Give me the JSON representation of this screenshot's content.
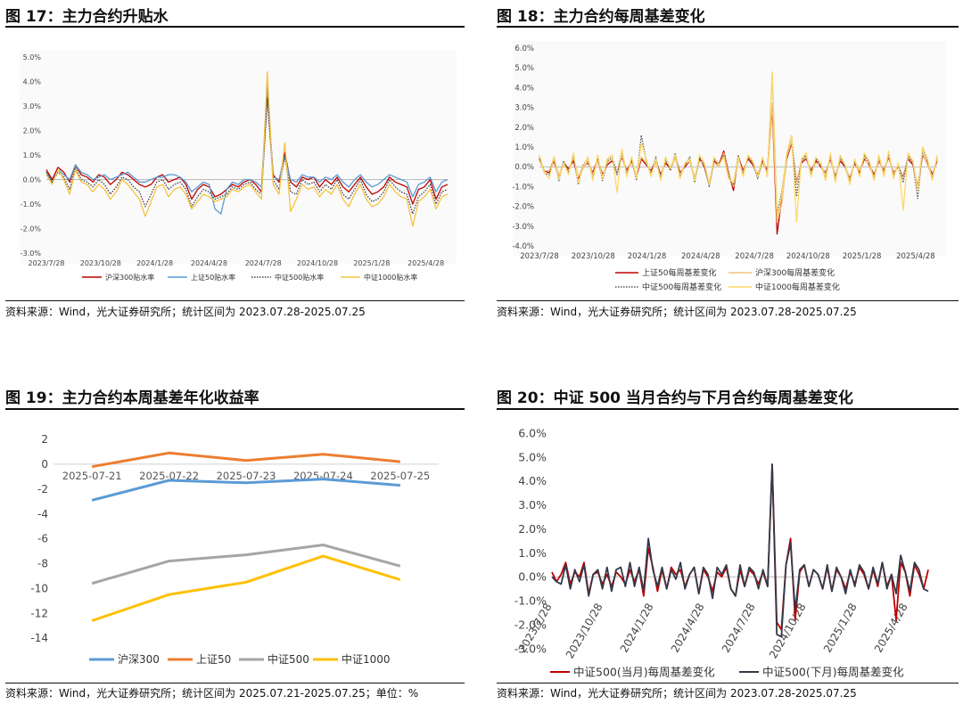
{
  "panels": [
    {
      "title": "图 17：主力合约升贴水",
      "source": "资料来源：Wind，光大证券研究所；统计区间为 2023.07.28-2025.07.25"
    },
    {
      "title": "图 18：主力合约每周基差变化",
      "source": "资料来源：Wind，光大证券研究所；统计区间为 2023.07.28-2025.07.25"
    },
    {
      "title": "图 19：主力合约本周基差年化收益率",
      "source": "资料来源：Wind，光大证券研究所；统计区间为 2025.07.21-2025.07.25；单位：%"
    },
    {
      "title": "图 20：中证 500 当月合约与下月合约每周基差变化",
      "source": "资料来源：Wind，光大证券研究所；统计区间为 2023.07.28-2025.07.25"
    }
  ],
  "chart_data": [
    {
      "type": "line",
      "title": "",
      "ylim": [
        -3.0,
        5.0
      ],
      "yticks": [
        "-3.0%",
        "-2.0%",
        "-1.0%",
        "0.0%",
        "1.0%",
        "2.0%",
        "3.0%",
        "4.0%",
        "5.0%"
      ],
      "xticks": [
        "2023/7/28",
        "2023/10/28",
        "2024/1/28",
        "2024/4/28",
        "2024/7/28",
        "2024/10/28",
        "2025/1/28",
        "2025/4/28"
      ],
      "legend_position": "bottom",
      "series": [
        {
          "name": "沪深300贴水率",
          "color": "#c00000",
          "style": "solid",
          "values": [
            0.4,
            0.0,
            0.5,
            0.3,
            -0.1,
            0.6,
            0.2,
            0.1,
            -0.1,
            0.2,
            0.1,
            -0.2,
            0.0,
            0.3,
            0.2,
            0.0,
            -0.2,
            -0.3,
            -0.2,
            0.1,
            0.2,
            -0.1,
            0.0,
            0.1,
            -0.2,
            -0.8,
            -0.4,
            -0.2,
            -0.3,
            -0.7,
            -0.6,
            -0.4,
            -0.2,
            -0.3,
            -0.1,
            0.0,
            -0.2,
            -0.5,
            3.6,
            0.2,
            -0.1,
            1.1,
            -0.1,
            -0.3,
            0.1,
            0.0,
            0.1,
            -0.3,
            0.0,
            -0.2,
            0.1,
            -0.3,
            -0.5,
            -0.2,
            0.1,
            -0.3,
            -0.6,
            -0.5,
            -0.3,
            0.1,
            -0.1,
            -0.2,
            -0.3,
            -1.0,
            -0.4,
            -0.3,
            0.0,
            -0.8,
            -0.3,
            -0.2
          ]
        },
        {
          "name": "上证50贴水率",
          "color": "#5b9bd5",
          "style": "solid",
          "values": [
            0.3,
            -0.1,
            0.4,
            0.2,
            0.0,
            0.6,
            0.3,
            0.2,
            0.0,
            0.1,
            0.2,
            0.0,
            0.1,
            0.2,
            0.3,
            0.1,
            -0.1,
            -0.1,
            0.0,
            0.1,
            0.1,
            0.2,
            0.2,
            0.1,
            -0.1,
            -0.5,
            -0.3,
            -0.1,
            -0.2,
            -1.2,
            -1.4,
            -0.4,
            -0.1,
            -0.2,
            0.0,
            0.0,
            -0.1,
            -0.3,
            3.8,
            0.1,
            0.0,
            0.9,
            0.0,
            -0.1,
            0.2,
            0.1,
            0.1,
            -0.1,
            0.1,
            0.0,
            0.2,
            -0.1,
            -0.3,
            0.0,
            0.2,
            -0.1,
            -0.3,
            -0.2,
            0.0,
            0.2,
            0.1,
            0.0,
            -0.1,
            -0.7,
            -0.2,
            -0.1,
            0.1,
            -0.5,
            -0.1,
            0.0
          ]
        },
        {
          "name": "中证500贴水率",
          "color": "#404040",
          "style": "dotted",
          "values": [
            0.3,
            -0.1,
            0.3,
            0.1,
            -0.4,
            0.5,
            0.0,
            -0.1,
            -0.3,
            0.0,
            -0.2,
            -0.6,
            -0.3,
            0.1,
            0.0,
            -0.3,
            -0.5,
            -1.1,
            -0.6,
            -0.1,
            0.0,
            -0.4,
            -0.2,
            -0.1,
            -0.4,
            -1.1,
            -0.7,
            -0.4,
            -0.5,
            -0.8,
            -0.7,
            -0.6,
            -0.3,
            -0.4,
            -0.2,
            -0.1,
            -0.4,
            -0.6,
            3.3,
            0.0,
            -0.4,
            1.0,
            -0.5,
            -0.6,
            0.0,
            -0.2,
            -0.1,
            -0.5,
            -0.2,
            -0.4,
            0.0,
            -0.6,
            -0.8,
            -0.4,
            0.0,
            -0.6,
            -0.9,
            -0.8,
            -0.5,
            0.0,
            -0.3,
            -0.5,
            -0.6,
            -1.4,
            -0.7,
            -0.5,
            -0.2,
            -1.0,
            -0.5,
            -0.4
          ]
        },
        {
          "name": "中证1000贴水率",
          "color": "#f5c342",
          "style": "solid",
          "values": [
            0.2,
            -0.2,
            0.4,
            0.0,
            -0.6,
            0.4,
            -0.1,
            -0.2,
            -0.5,
            -0.2,
            -0.4,
            -0.8,
            -0.5,
            0.0,
            -0.2,
            -0.5,
            -0.8,
            -1.5,
            -0.9,
            -0.3,
            -0.2,
            -0.7,
            -0.4,
            -0.3,
            -0.6,
            -1.2,
            -0.9,
            -0.6,
            -0.7,
            -0.9,
            -0.8,
            -0.7,
            -0.4,
            -0.5,
            -0.3,
            -0.2,
            -0.5,
            -0.8,
            4.4,
            -0.2,
            -0.6,
            1.5,
            -1.3,
            -0.8,
            -0.2,
            -0.4,
            -0.3,
            -0.7,
            -0.4,
            -0.6,
            -0.2,
            -0.8,
            -1.1,
            -0.6,
            -0.2,
            -0.8,
            -1.1,
            -1.0,
            -0.7,
            -0.2,
            -0.5,
            -0.7,
            -0.8,
            -1.9,
            -0.9,
            -0.7,
            -0.4,
            -1.2,
            -0.7,
            -0.6
          ]
        }
      ]
    },
    {
      "type": "line",
      "title": "",
      "ylim": [
        -4.0,
        6.0
      ],
      "yticks": [
        "-4.0%",
        "-3.0%",
        "-2.0%",
        "-1.0%",
        "0.0%",
        "1.0%",
        "2.0%",
        "3.0%",
        "4.0%",
        "5.0%",
        "6.0%"
      ],
      "xticks": [
        "2023/7/28",
        "2023/10/28",
        "2024/1/28",
        "2024/4/28",
        "2024/7/28",
        "2024/10/28",
        "2025/1/28",
        "2025/4/28"
      ],
      "legend_position": "bottom",
      "series": [
        {
          "name": "上证50每周基差变化",
          "color": "#c00000",
          "style": "solid",
          "values": [
            0.4,
            -0.2,
            -0.3,
            0.3,
            -0.5,
            0.2,
            -0.1,
            0.3,
            -0.6,
            0.0,
            0.2,
            -0.3,
            0.4,
            -0.4,
            0.1,
            0.3,
            -0.3,
            0.5,
            -0.2,
            0.3,
            -0.5,
            0.4,
            0.1,
            -0.2,
            0.3,
            -0.4,
            0.2,
            -0.1,
            0.5,
            -0.3,
            0.0,
            0.3,
            -0.6,
            0.4,
            0.0,
            -0.9,
            0.3,
            0.1,
            0.8,
            -0.3,
            -1.2,
            0.5,
            -0.2,
            0.4,
            0.1,
            -0.4,
            0.3,
            -0.2,
            3.0,
            -3.4,
            -1.5,
            0.4,
            1.2,
            -0.8,
            0.2,
            0.4,
            -0.2,
            0.3,
            0.0,
            -0.3,
            0.4,
            -0.5,
            0.3,
            0.0,
            -0.6,
            0.2,
            -0.3,
            0.4,
            0.1,
            -0.4,
            0.3,
            -0.2,
            0.5,
            -0.3,
            0.0,
            -0.5,
            0.4,
            0.1,
            -1.0,
            0.6,
            0.2,
            -0.4,
            0.3
          ]
        },
        {
          "name": "沪深300每周基差变化",
          "color": "#f0c27a",
          "style": "solid",
          "values": [
            0.3,
            -0.2,
            -0.2,
            0.4,
            -0.4,
            0.1,
            -0.2,
            0.5,
            -0.5,
            -0.1,
            0.3,
            -0.4,
            0.3,
            -0.5,
            0.2,
            0.4,
            -0.3,
            0.6,
            -0.3,
            0.2,
            -0.4,
            0.5,
            0.2,
            -0.3,
            0.2,
            -0.5,
            0.3,
            0.0,
            0.4,
            -0.4,
            0.1,
            0.3,
            -0.5,
            0.3,
            0.1,
            -0.8,
            0.2,
            0.0,
            0.7,
            -0.4,
            -1.0,
            0.4,
            -0.3,
            0.5,
            0.2,
            -0.5,
            0.2,
            -0.3,
            3.2,
            -2.8,
            -1.8,
            0.5,
            1.3,
            -0.9,
            0.3,
            0.5,
            -0.3,
            0.2,
            0.1,
            -0.4,
            0.5,
            -0.6,
            0.4,
            0.1,
            -0.7,
            0.3,
            -0.2,
            0.5,
            0.0,
            -0.5,
            0.4,
            -0.3,
            0.6,
            -0.4,
            0.1,
            -0.6,
            0.5,
            0.2,
            -1.1,
            0.7,
            0.1,
            -0.5,
            0.4
          ]
        },
        {
          "name": "中证500每周基差变化",
          "color": "#555555",
          "style": "dotted",
          "values": [
            0.5,
            -0.3,
            -0.4,
            0.5,
            -0.7,
            0.3,
            -0.3,
            0.6,
            -0.9,
            0.1,
            0.4,
            -0.6,
            0.5,
            -0.7,
            0.3,
            0.5,
            -0.4,
            0.8,
            -0.4,
            0.4,
            -0.7,
            1.6,
            0.3,
            -0.4,
            0.5,
            -0.6,
            0.4,
            -0.2,
            0.7,
            -0.5,
            0.1,
            0.5,
            -0.8,
            0.5,
            0.1,
            -1.0,
            0.4,
            0.2,
            0.6,
            -0.5,
            -0.9,
            0.6,
            -0.4,
            0.5,
            0.2,
            -0.6,
            0.4,
            -0.4,
            4.7,
            -2.4,
            -1.2,
            0.6,
            1.6,
            -1.5,
            0.3,
            0.6,
            -0.4,
            0.4,
            0.1,
            -0.6,
            0.6,
            -0.7,
            0.5,
            0.0,
            -0.8,
            0.3,
            -0.4,
            0.6,
            0.2,
            -0.6,
            0.5,
            -0.4,
            0.7,
            -0.5,
            0.1,
            -0.8,
            0.6,
            0.2,
            -1.6,
            0.9,
            0.3,
            -0.6,
            0.5
          ]
        },
        {
          "name": "中证1000每周基差变化",
          "color": "#ffd966",
          "style": "solid",
          "values": [
            0.6,
            -0.3,
            -0.6,
            0.5,
            -0.6,
            0.2,
            -0.4,
            0.7,
            -0.8,
            0.0,
            0.5,
            -0.7,
            0.6,
            -0.6,
            0.4,
            0.6,
            -1.3,
            0.9,
            -0.5,
            0.5,
            -0.6,
            1.2,
            0.4,
            -0.5,
            0.4,
            -0.7,
            0.5,
            -0.1,
            0.6,
            -0.6,
            0.2,
            0.4,
            -0.7,
            0.6,
            0.2,
            -0.9,
            0.5,
            0.1,
            0.5,
            -0.6,
            -0.8,
            0.5,
            -0.5,
            0.6,
            0.3,
            -0.5,
            0.5,
            -0.5,
            4.8,
            -2.6,
            -1.4,
            0.7,
            1.6,
            -2.8,
            0.4,
            0.7,
            -0.5,
            0.5,
            0.2,
            -0.7,
            0.7,
            -0.8,
            0.6,
            0.1,
            -0.9,
            0.4,
            -0.5,
            0.7,
            0.3,
            -0.7,
            0.6,
            -0.5,
            0.8,
            -0.6,
            0.2,
            -2.2,
            0.7,
            0.3,
            -1.2,
            1.0,
            0.4,
            -0.7,
            0.6
          ]
        }
      ]
    },
    {
      "type": "line",
      "title": "",
      "ylim": [
        -14,
        2
      ],
      "yticks": [
        "-14",
        "-12",
        "-10",
        "-8",
        "-6",
        "-4",
        "-2",
        "0",
        "2"
      ],
      "categories": [
        "2025-07-21",
        "2025-07-22",
        "2025-07-23",
        "2025-07-24",
        "2025-07-25"
      ],
      "legend_position": "bottom",
      "series": [
        {
          "name": "沪深300",
          "color": "#5b9bd5",
          "values": [
            -2.9,
            -1.3,
            -1.5,
            -1.2,
            -1.7
          ]
        },
        {
          "name": "上证50",
          "color": "#ed7d31",
          "values": [
            -0.2,
            0.9,
            0.3,
            0.8,
            0.2
          ]
        },
        {
          "name": "中证500",
          "color": "#a5a5a5",
          "values": [
            -9.6,
            -7.8,
            -7.3,
            -6.5,
            -8.2
          ]
        },
        {
          "name": "中证1000",
          "color": "#ffc000",
          "values": [
            -12.6,
            -10.5,
            -9.5,
            -7.4,
            -9.3
          ]
        }
      ]
    },
    {
      "type": "line",
      "title": "",
      "ylim": [
        -3.0,
        6.0
      ],
      "yticks": [
        "-3.0%",
        "-2.0%",
        "-1.0%",
        "0.0%",
        "1.0%",
        "2.0%",
        "3.0%",
        "4.0%",
        "5.0%",
        "6.0%"
      ],
      "xticks": [
        "2023/7/28",
        "2023/10/28",
        "2024/1/28",
        "2024/4/28",
        "2024/7/28",
        "2024/10/28",
        "2025/1/28",
        "2025/4/28"
      ],
      "legend_position": "bottom",
      "series": [
        {
          "name": "中证500(当月)每周基差变化",
          "color": "#c00000",
          "values": [
            0.2,
            -0.2,
            0.1,
            0.6,
            -0.3,
            0.2,
            0.0,
            0.6,
            -0.7,
            0.1,
            0.2,
            -0.3,
            0.1,
            -0.4,
            0.2,
            0.0,
            -0.3,
            0.3,
            -0.2,
            0.3,
            -0.8,
            1.2,
            0.4,
            -0.6,
            0.3,
            -0.5,
            0.4,
            0.1,
            0.3,
            -0.4,
            0.1,
            0.4,
            -0.7,
            0.3,
            0.0,
            -0.6,
            0.2,
            0.0,
            0.4,
            -0.5,
            -0.8,
            0.3,
            -0.4,
            0.3,
            0.1,
            -0.3,
            0.2,
            -0.4,
            4.7,
            -1.9,
            -2.2,
            0.5,
            1.6,
            -1.8,
            0.2,
            0.5,
            -0.4,
            0.3,
            0.1,
            -0.5,
            0.4,
            -0.6,
            0.3,
            0.0,
            -0.5,
            0.2,
            -0.3,
            0.4,
            0.1,
            -0.5,
            0.3,
            -0.4,
            0.6,
            -0.4,
            0.1,
            -1.8,
            0.6,
            0.2,
            -0.8,
            0.5,
            0.1,
            -0.5,
            0.3
          ]
        },
        {
          "name": "中证500(下月)每周基差变化",
          "color": "#333a4a",
          "values": [
            0.0,
            -0.2,
            -0.3,
            0.5,
            -0.5,
            0.3,
            -0.2,
            0.5,
            -0.8,
            0.1,
            0.3,
            -0.5,
            0.4,
            -0.6,
            0.3,
            0.4,
            -0.4,
            0.6,
            -0.4,
            0.4,
            -0.6,
            1.6,
            0.3,
            -0.4,
            0.4,
            -0.5,
            0.3,
            -0.1,
            0.6,
            -0.5,
            0.1,
            0.4,
            -0.7,
            0.4,
            0.1,
            -0.9,
            0.4,
            0.1,
            0.5,
            -0.5,
            -0.8,
            0.5,
            -0.4,
            0.4,
            0.2,
            -0.5,
            0.3,
            -0.4,
            4.7,
            -2.4,
            -2.5,
            0.5,
            1.4,
            -1.4,
            0.3,
            0.5,
            -0.4,
            0.3,
            0.1,
            -0.5,
            0.5,
            -0.6,
            0.4,
            0.0,
            -0.7,
            0.3,
            -0.4,
            0.5,
            0.2,
            -0.5,
            0.4,
            -0.3,
            0.6,
            -0.5,
            0.1,
            -0.7,
            0.9,
            0.2,
            -0.6,
            0.6,
            0.3,
            -0.5,
            -0.6
          ]
        }
      ]
    }
  ]
}
